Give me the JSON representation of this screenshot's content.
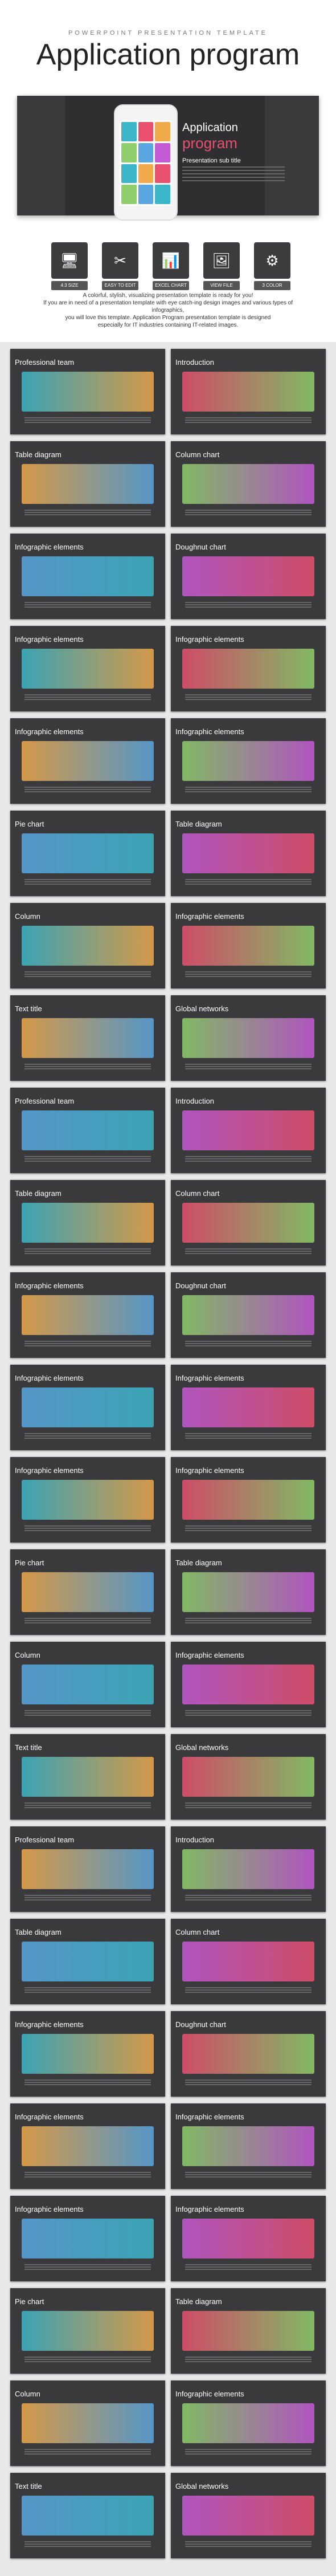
{
  "header": {
    "eyebrow": "POWERPOINT PRESENTATION TEMPLATE",
    "title": "Application program"
  },
  "hero": {
    "line1": "Application",
    "line2": "program",
    "sub": "Presentation sub title",
    "tiles": [
      "#3bb6c9",
      "#e8506f",
      "#f0a94b",
      "#8ecf6b",
      "#5aa6e0",
      "#c45ad6",
      "#3bb6c9",
      "#f0a94b",
      "#e8506f",
      "#8ecf6b",
      "#5aa6e0",
      "#3bb6c9"
    ]
  },
  "features": [
    {
      "icon": "🖥",
      "label": "4:3 SIZE"
    },
    {
      "icon": "✂",
      "label": "EASY TO EDIT"
    },
    {
      "icon": "📊",
      "label": "EXCEL CHART"
    },
    {
      "icon": "🖼",
      "label": "VIEW FILE"
    },
    {
      "icon": "⚙",
      "label": "3 COLOR"
    }
  ],
  "intro": [
    "A colorful, stylish, visualizing presentation template is ready for you!",
    "If you are in need of a presentation template with eye catch-ing design images and various types of infographics,",
    "you will love this template. Application Program presentation template is designed",
    "especially for IT industries containing IT-related images."
  ],
  "slides": [
    "Professional team",
    "Introduction",
    "Table diagram",
    "Column chart",
    "Infographic elements",
    "Doughnut chart",
    "Infographic elements",
    "Infographic elements",
    "Infographic elements",
    "Infographic elements",
    "Pie chart",
    "Table diagram",
    "Column",
    "Infographic elements",
    "Text title",
    "Global networks",
    "Professional team",
    "Introduction",
    "Table diagram",
    "Column chart",
    "Infographic elements",
    "Doughnut chart",
    "Infographic elements",
    "Infographic elements",
    "Infographic elements",
    "Infographic elements",
    "Pie chart",
    "Table diagram",
    "Column",
    "Infographic elements",
    "Text title",
    "Global networks",
    "Professional team",
    "Introduction",
    "Table diagram",
    "Column chart",
    "Infographic elements",
    "Doughnut chart",
    "Infographic elements",
    "Infographic elements",
    "Infographic elements",
    "Infographic elements",
    "Pie chart",
    "Table diagram",
    "Column",
    "Infographic elements",
    "Text title",
    "Global networks"
  ],
  "accents": [
    "#3bb6c9",
    "#e8506f",
    "#f0a94b",
    "#8ecf6b",
    "#5aa6e0",
    "#c45ad6"
  ]
}
